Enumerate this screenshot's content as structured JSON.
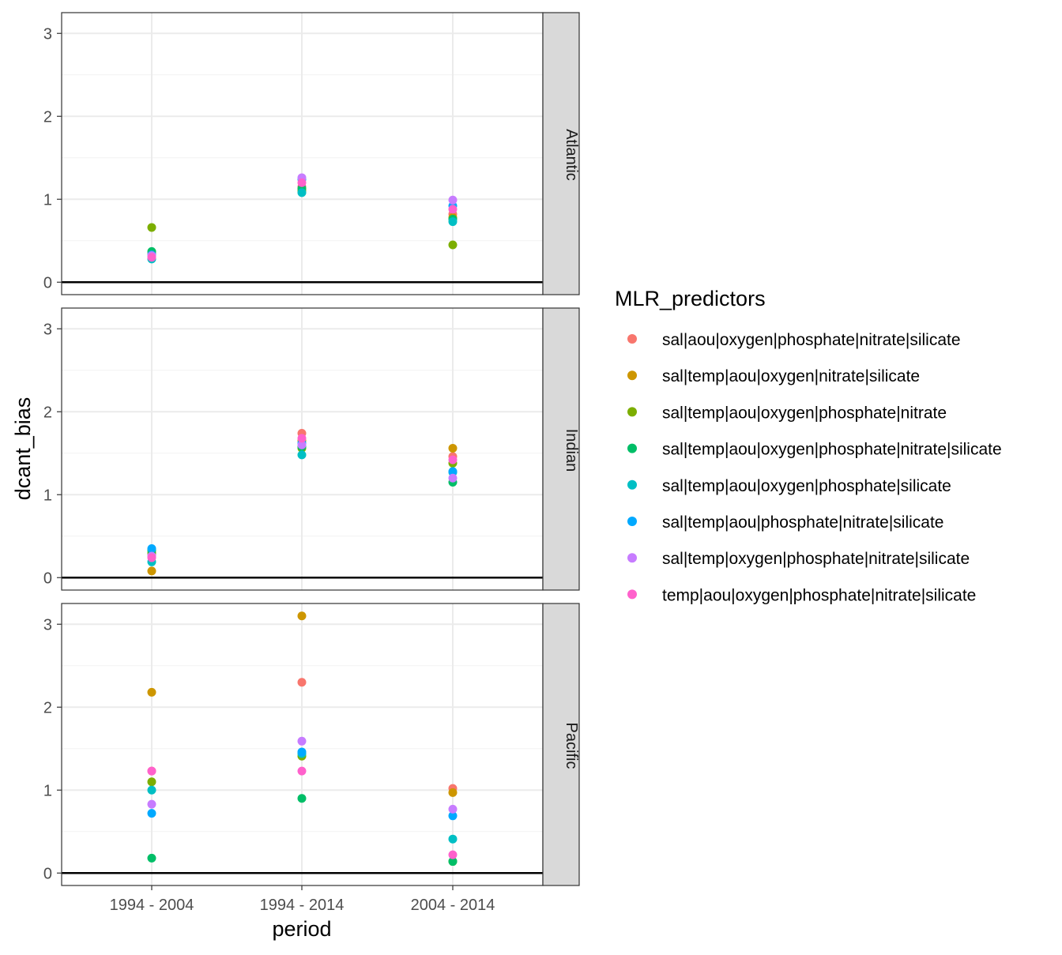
{
  "chart_data": {
    "type": "scatter",
    "xlabel": "period",
    "ylabel": "dcant_bias",
    "categories": [
      "1994 - 2004",
      "1994 - 2014",
      "2004 - 2014"
    ],
    "ylim": [
      -0.15,
      3.25
    ],
    "yticks": [
      0,
      1,
      2,
      3
    ],
    "grid": true,
    "hline": 0,
    "legend": {
      "title": "MLR_predictors",
      "position": "right"
    },
    "series": [
      {
        "name": "sal|aou|oxygen|phosphate|nitrate|silicate",
        "color": "#F8766D"
      },
      {
        "name": "sal|temp|aou|oxygen|nitrate|silicate",
        "color": "#CD9600"
      },
      {
        "name": "sal|temp|aou|oxygen|phosphate|nitrate",
        "color": "#7CAE00"
      },
      {
        "name": "sal|temp|aou|oxygen|phosphate|nitrate|silicate",
        "color": "#00BE67"
      },
      {
        "name": "sal|temp|aou|oxygen|phosphate|silicate",
        "color": "#00BFC4"
      },
      {
        "name": "sal|temp|aou|phosphate|nitrate|silicate",
        "color": "#00A9FF"
      },
      {
        "name": "sal|temp|oxygen|phosphate|nitrate|silicate",
        "color": "#C77CFF"
      },
      {
        "name": "temp|aou|oxygen|phosphate|nitrate|silicate",
        "color": "#FF61CC"
      }
    ],
    "panels": [
      {
        "name": "Atlantic",
        "values": [
          [
            0.35,
            1.15,
            0.82
          ],
          [
            0.32,
            1.12,
            0.78
          ],
          [
            0.66,
            1.1,
            0.45
          ],
          [
            0.37,
            1.13,
            0.76
          ],
          [
            0.28,
            1.08,
            0.73
          ],
          [
            0.33,
            1.24,
            0.92
          ],
          [
            0.32,
            1.26,
            0.99
          ],
          [
            0.3,
            1.2,
            0.88
          ]
        ]
      },
      {
        "name": "Indian",
        "values": [
          [
            0.28,
            1.74,
            1.46
          ],
          [
            0.08,
            1.65,
            1.56
          ],
          [
            0.3,
            1.56,
            1.38
          ],
          [
            0.33,
            1.58,
            1.15
          ],
          [
            0.19,
            1.48,
            1.27
          ],
          [
            0.35,
            1.62,
            1.28
          ],
          [
            0.26,
            1.6,
            1.2
          ],
          [
            0.24,
            1.68,
            1.42
          ]
        ]
      },
      {
        "name": "Pacific",
        "values": [
          [
            1.23,
            2.3,
            1.02
          ],
          [
            2.18,
            3.1,
            0.97
          ],
          [
            1.1,
            1.41,
            0.14
          ],
          [
            0.18,
            0.9,
            0.14
          ],
          [
            1.0,
            1.44,
            0.41
          ],
          [
            0.72,
            1.46,
            0.69
          ],
          [
            0.83,
            1.59,
            0.77
          ],
          [
            1.23,
            1.23,
            0.22
          ]
        ]
      }
    ]
  }
}
